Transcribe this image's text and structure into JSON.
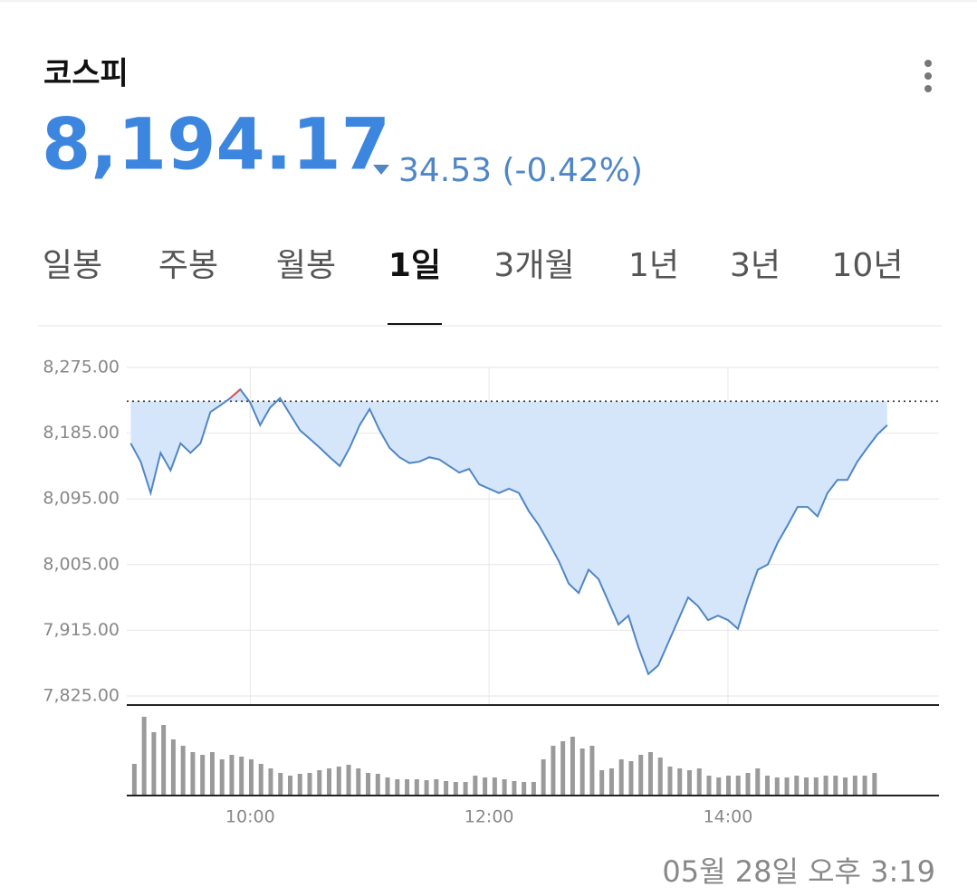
{
  "header": {
    "title": "코스피",
    "price": "8,194.17",
    "change": "34.53 (-0.42%)"
  },
  "tabs": [
    "일봉",
    "주봉",
    "월봉",
    "1일",
    "3개월",
    "1년",
    "3년",
    "10년"
  ],
  "active_tab": 3,
  "chart_data": {
    "type": "line",
    "x": [
      540,
      545,
      550,
      555,
      560,
      565,
      570,
      575,
      580,
      585,
      590,
      595,
      600,
      605,
      610,
      615,
      620,
      625,
      630,
      635,
      640,
      645,
      650,
      655,
      660,
      665,
      670,
      675,
      680,
      685,
      690,
      695,
      700,
      705,
      710,
      715,
      720,
      725,
      730,
      735,
      740,
      745,
      750,
      755,
      760,
      765,
      770,
      775,
      780,
      785,
      790,
      795,
      800,
      805,
      810,
      815,
      820,
      825,
      830,
      835,
      840,
      845,
      850,
      855,
      860,
      865,
      870,
      875,
      880,
      885,
      890,
      895,
      900,
      905,
      910,
      915,
      920
    ],
    "series": [
      {
        "color": "#4f86c6",
        "values": [
          8171,
          8146,
          8103,
          8158,
          8134,
          8171,
          8158,
          8171,
          8214,
          8223,
          8233,
          8245,
          8227,
          8196,
          8220,
          8233,
          8211,
          8189,
          8177,
          8165,
          8152,
          8140,
          8165,
          8196,
          8218,
          8189,
          8165,
          8152,
          8144,
          8146,
          8152,
          8149,
          8140,
          8131,
          8136,
          8115,
          8109,
          8103,
          8109,
          8103,
          8078,
          8059,
          8035,
          8010,
          7979,
          7966,
          7998,
          7985,
          7954,
          7923,
          7935,
          7892,
          7855,
          7867,
          7898,
          7929,
          7960,
          7948,
          7929,
          7935,
          7929,
          7917,
          7960,
          7998,
          8005,
          8035,
          8059,
          8084,
          8084,
          8071,
          8103,
          8121,
          8121,
          8146,
          8165,
          8183,
          8196
        ]
      }
    ],
    "reference": 8228.7,
    "up_color": "#e05050",
    "fill_color": "#d6e6fa",
    "xlim": [
      538,
      946
    ],
    "xticks": [
      {
        "value": 600,
        "label": "10:00"
      },
      {
        "value": 720,
        "label": "12:00"
      },
      {
        "value": 840,
        "label": "14:00"
      }
    ],
    "ylim": [
      7825,
      8275
    ],
    "yticks": [
      {
        "value": 7825,
        "label": "7,825.00"
      },
      {
        "value": 7915,
        "label": "7,915.00"
      },
      {
        "value": 8005,
        "label": "8,005.00"
      },
      {
        "value": 8095,
        "label": "8,095.00"
      },
      {
        "value": 8185,
        "label": "8,185.00"
      },
      {
        "value": 8275,
        "label": "8,275.00"
      }
    ],
    "grid": true,
    "volume": {
      "color": "#9a9a9a",
      "values": [
        35,
        87,
        70,
        78,
        62,
        55,
        48,
        45,
        48,
        40,
        45,
        43,
        40,
        35,
        30,
        25,
        22,
        24,
        25,
        28,
        30,
        32,
        34,
        30,
        25,
        24,
        20,
        18,
        18,
        18,
        17,
        18,
        16,
        15,
        15,
        22,
        20,
        20,
        18,
        16,
        15,
        15,
        40,
        55,
        60,
        65,
        52,
        55,
        28,
        30,
        40,
        38,
        45,
        48,
        42,
        32,
        30,
        28,
        30,
        22,
        20,
        22,
        22,
        25,
        30,
        22,
        20,
        20,
        22,
        20,
        20,
        22,
        22,
        20,
        22,
        22,
        25
      ]
    }
  },
  "footer": {
    "timestamp": "05월 28일 오후 3:19"
  }
}
